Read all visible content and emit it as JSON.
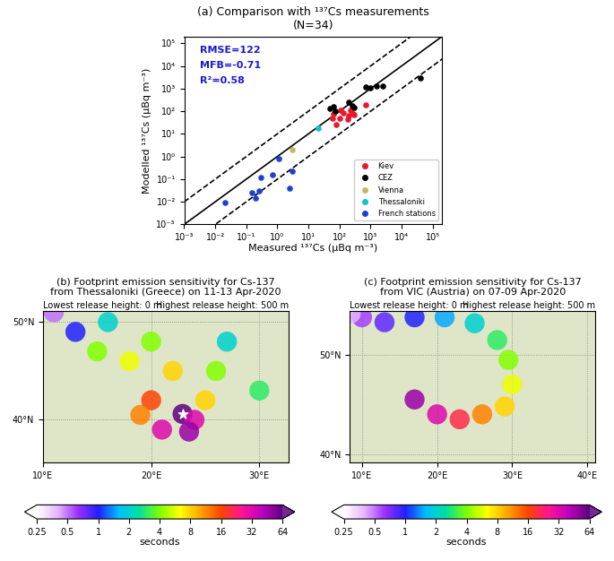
{
  "chart_data": [
    {
      "type": "scatter",
      "title": "(a) Comparison with ¹³⁷Cs measurements\n(N=34)",
      "xlabel": "Measured ¹³⁷Cs (μBq m⁻³)",
      "ylabel": "Modelled ¹³⁷Cs (μBq m⁻³)",
      "log": true,
      "xlim": [
        0.001,
        200000
      ],
      "ylim": [
        0.001,
        200000
      ],
      "xticks": [
        {
          "value": 0.001,
          "label": "10⁻³"
        },
        {
          "value": 0.01,
          "label": "10⁻²"
        },
        {
          "value": 0.1,
          "label": "10⁻¹"
        },
        {
          "value": 1,
          "label": "10⁰"
        },
        {
          "value": 10,
          "label": "10¹"
        },
        {
          "value": 100,
          "label": "10²"
        },
        {
          "value": 1000,
          "label": "10³"
        },
        {
          "value": 10000,
          "label": "10⁴"
        },
        {
          "value": 100000,
          "label": "10⁵"
        }
      ],
      "yticks": [
        {
          "value": 0.001,
          "label": "10⁻³"
        },
        {
          "value": 0.01,
          "label": "10⁻²"
        },
        {
          "value": 0.1,
          "label": "10⁻¹"
        },
        {
          "value": 1,
          "label": "10⁰"
        },
        {
          "value": 10,
          "label": "10¹"
        },
        {
          "value": 100,
          "label": "10²"
        },
        {
          "value": 1000,
          "label": "10³"
        },
        {
          "value": 10000,
          "label": "10⁴"
        },
        {
          "value": 100000,
          "label": "10⁵"
        }
      ],
      "annotations": [
        "RMSE=122",
        "MFB=-0.71",
        "R²=0.58"
      ],
      "legend": "lower right",
      "lines": [
        {
          "factor": 1,
          "line_style": "solid",
          "color": "black"
        },
        {
          "factor": 10,
          "line_style": "dashed",
          "color": "black"
        },
        {
          "factor": 0.1,
          "line_style": "dashed",
          "color": "black"
        }
      ],
      "series": [
        {
          "name": "Kiev",
          "color": "#e8192c",
          "x": [
            60,
            65,
            80,
            100,
            110,
            130,
            180,
            200,
            230,
            270,
            300,
            700
          ],
          "values": [
            50,
            80,
            25,
            50,
            110,
            85,
            45,
            65,
            110,
            80,
            70,
            190
          ]
        },
        {
          "name": "CEZ",
          "color": "#000000",
          "x": [
            50,
            65,
            75,
            200,
            250,
            300,
            700,
            1000,
            1500,
            2500,
            40000
          ],
          "values": [
            130,
            160,
            100,
            260,
            180,
            140,
            1200,
            1100,
            1300,
            1300,
            3000
          ]
        },
        {
          "name": "Vienna",
          "color": "#c8b560",
          "x": [
            3
          ],
          "values": [
            2
          ]
        },
        {
          "name": "Thessaloniki",
          "color": "#17becf",
          "x": [
            20
          ],
          "values": [
            18
          ]
        },
        {
          "name": "French stations",
          "color": "#1f3fd0",
          "x": [
            0.02,
            0.15,
            0.2,
            0.25,
            0.3,
            0.7,
            1.1,
            2.5,
            3
          ],
          "values": [
            0.009,
            0.025,
            0.015,
            0.03,
            0.12,
            0.15,
            0.8,
            0.04,
            0.22
          ]
        }
      ]
    },
    {
      "type": "map",
      "title": "(b) Footprint emission sensitivity for Cs-137\nfrom Thessaloniki (Greece) on 11-13 Apr-2020",
      "annotations": [
        "Lowest release height: 0 m",
        "Highest release height: 500 m"
      ],
      "xlim": [
        10,
        32.7
      ],
      "ylim": [
        35.6,
        51.1
      ],
      "xticks": [
        {
          "value": 10,
          "label": "10°E"
        },
        {
          "value": 20,
          "label": "20°E"
        },
        {
          "value": 30,
          "label": "30°E"
        }
      ],
      "yticks": [
        {
          "value": 40,
          "label": "40°N"
        },
        {
          "value": 50,
          "label": "50°N"
        }
      ],
      "source": {
        "lon": 22.9,
        "lat": 40.6,
        "marker": "star",
        "color": "white"
      },
      "footprint": {
        "lon": [
          22.9,
          24.0,
          21.0,
          20.0,
          25.0,
          22.0,
          26.0,
          18.0,
          15.0,
          20.0,
          13.0,
          16.0,
          11.0,
          27.0,
          30.0,
          23.5,
          19.0
        ],
        "lat": [
          40.6,
          40.0,
          39.0,
          42.0,
          42.0,
          45.0,
          45.0,
          46.0,
          47.0,
          48.0,
          49.0,
          50.0,
          51.0,
          48.0,
          43.0,
          38.8,
          40.5
        ],
        "seconds": [
          64,
          32,
          32,
          16,
          8,
          8,
          4,
          6,
          4,
          4,
          1,
          2,
          0.5,
          2,
          3,
          48,
          12
        ]
      },
      "colorbar": {
        "label": "seconds",
        "range": [
          0.25,
          64
        ],
        "ticks": [
          0.25,
          0.5,
          1,
          2,
          4,
          8,
          16,
          32,
          64
        ]
      }
    },
    {
      "type": "map",
      "title": "(c) Footprint emission sensitivity for Cs-137\nfrom VIC (Austria) on 07-09 Apr-2020",
      "annotations": [
        "Lowest release height: 0 m",
        "Highest release height: 500 m"
      ],
      "xlim": [
        8.4,
        41.1
      ],
      "ylim": [
        39.1,
        54.4
      ],
      "xticks": [
        {
          "value": 10,
          "label": "10°E"
        },
        {
          "value": 20,
          "label": "20°E"
        },
        {
          "value": 30,
          "label": "30°E"
        },
        {
          "value": 40,
          "label": "40°E"
        }
      ],
      "yticks": [
        {
          "value": 40,
          "label": "40°N"
        },
        {
          "value": 50,
          "label": "50°N"
        }
      ],
      "footprint": {
        "lon": [
          17.0,
          20.0,
          23.0,
          26.0,
          29.0,
          30.0,
          29.5,
          28.0,
          25.0,
          21.0,
          17.0,
          13.0,
          10.0,
          8.5
        ],
        "lat": [
          45.5,
          44.0,
          43.5,
          44.0,
          44.8,
          47.0,
          49.5,
          51.5,
          53.2,
          53.8,
          53.8,
          53.3,
          53.8,
          54.2
        ],
        "seconds": [
          48,
          32,
          20,
          12,
          8,
          6,
          4,
          3,
          2,
          1.5,
          1,
          0.8,
          0.6,
          0.4
        ]
      },
      "colorbar": {
        "label": "seconds",
        "range": [
          0.25,
          64
        ],
        "ticks": [
          0.25,
          0.5,
          1,
          2,
          4,
          8,
          16,
          32,
          64
        ]
      }
    }
  ]
}
